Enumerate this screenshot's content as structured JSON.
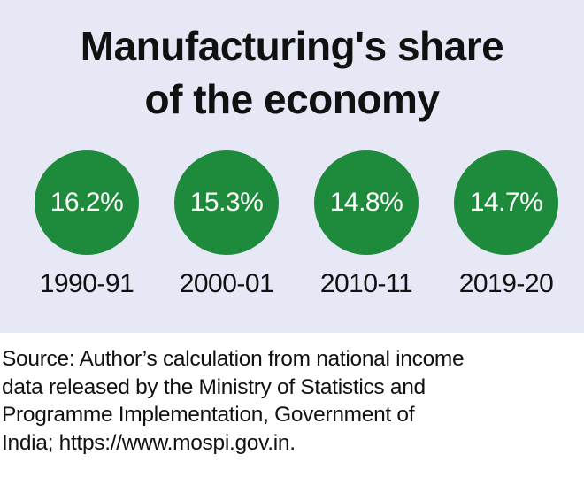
{
  "chart_data": {
    "type": "bubble-stat",
    "title_lines": [
      "Manufacturing's share",
      "of the economy"
    ],
    "categories": [
      "1990-91",
      "2000-01",
      "2010-11",
      "2019-20"
    ],
    "values": [
      16.2,
      15.3,
      14.8,
      14.7
    ],
    "value_labels": [
      "16.2%",
      "15.3%",
      "14.8%",
      "14.7%"
    ],
    "unit": "%",
    "circle_color": "#1e8a3c",
    "background_color": "#e6e8f5"
  },
  "source_lines": [
    "Source: Author’s calculation from national income",
    "data released by the Ministry of Statistics and",
    "Programme Implementation, Government of",
    "India; https://www.mospi.gov.in."
  ]
}
